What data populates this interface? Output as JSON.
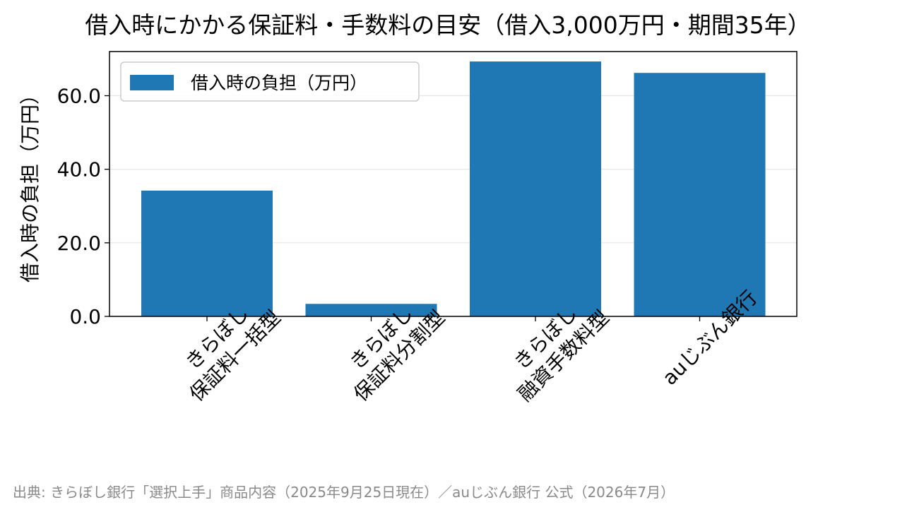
{
  "chart_data": {
    "type": "bar",
    "title": "借入時にかかる保証料・手数料の目安（借入3,000万円・期間35年）",
    "ylabel": "借入時の負担（万円）",
    "xlabel": "",
    "categories": [
      [
        "きらぼし",
        "保証料一括型"
      ],
      [
        "きらぼし",
        "保証料分割型"
      ],
      [
        "きらぼし",
        "融資手数料型"
      ],
      [
        "auじぶん銀行"
      ]
    ],
    "series": [
      {
        "name": "借入時の負担（万円）",
        "values": [
          34.2,
          3.4,
          69.3,
          66.2
        ]
      }
    ],
    "ylim": [
      0,
      72
    ],
    "yticks": [
      "0.0",
      "20.0",
      "40.0",
      "60.0"
    ],
    "ytick_values": [
      0,
      20,
      40,
      60
    ],
    "grid": true,
    "legend_position": "top-left",
    "bar_color": "#1f77b4",
    "source": "出典: きらぼし銀行「選択上手」商品内容（2025年9月25日現在）／auじぶん銀行 公式（2026年7月）"
  }
}
